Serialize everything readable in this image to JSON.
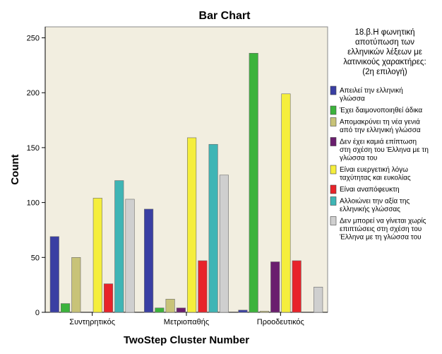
{
  "chart_data": {
    "type": "bar",
    "title": "Bar Chart",
    "xlabel": "TwoStep Cluster Number",
    "ylabel": "Count",
    "ylim": [
      0,
      260
    ],
    "yticks": [
      0,
      50,
      100,
      150,
      200,
      250
    ],
    "grid": false,
    "legend_position": "right",
    "categories": [
      "Συντηρητικός",
      "Μετριοπαθής",
      "Προοδευτικός"
    ],
    "legend_title": [
      "18.β.Η φωνητική",
      "αποτύπωση των",
      "ελληνικών λέξεων με",
      "λατινικούς χαρακτήρες:",
      "(2η επιλογή)"
    ],
    "series": [
      {
        "name": "Απειλεί την ελληνική γλώσσα",
        "legend_lines": [
          "Απειλεί την ελληνική",
          "γλώσσα"
        ],
        "color": "#3a3fa3",
        "values": [
          69,
          94,
          2
        ]
      },
      {
        "name": "Έχει δαιμονοποιηθεί άδικα",
        "legend_lines": [
          "Έχει δαιμονοποιηθεί άδικα"
        ],
        "color": "#3cb33c",
        "values": [
          8,
          4,
          236
        ]
      },
      {
        "name": "Απομακρύνει τη νέα γενιά από την ελληνική γλώσσα",
        "legend_lines": [
          "Απομακρύνει τη νέα γενιά",
          "από την ελληνική γλώσσα"
        ],
        "color": "#c8c378",
        "values": [
          50,
          12,
          1
        ]
      },
      {
        "name": "Δεν έχει καμιά επίπτωση στη σχέση του Έλληνα με τη γλώσσα του",
        "legend_lines": [
          "Δεν έχει καμιά επίπτωση",
          "στη σχέση του Έλληνα με τη",
          "γλώσσα του"
        ],
        "color": "#6a1e6e",
        "values": [
          0,
          4,
          46
        ]
      },
      {
        "name": "Είναι ευεργετική λόγω ταχύτητας και ευκολίας",
        "legend_lines": [
          "Είναι ευεργετική λόγω",
          "ταχύτητας και ευκολίας"
        ],
        "color": "#f5ee3c",
        "values": [
          104,
          159,
          199
        ]
      },
      {
        "name": "Είναι αναπόφευκτη",
        "legend_lines": [
          "Είναι αναπόφευκτη"
        ],
        "color": "#e8232a",
        "values": [
          26,
          47,
          47
        ]
      },
      {
        "name": "Αλλοιώνει την αξία της ελληνικής γλώσσας",
        "legend_lines": [
          "Αλλοιώνει την αξία της",
          "ελληνικής γλώσσας"
        ],
        "color": "#3fb5b5",
        "values": [
          120,
          153,
          0
        ]
      },
      {
        "name": "Δεν μπορεί να γίνεται χωρίς επιπτώσεις στη σχέση του Έλληνα με τη γλώσσα του",
        "legend_lines": [
          "Δεν μπορεί να γίνεται χωρίς",
          "επιπτώσεις στη σχέση του",
          "Έλληνα με τη γλώσσα του"
        ],
        "color": "#cfcfcf",
        "values": [
          103,
          125,
          23
        ]
      }
    ]
  },
  "colors": {
    "plot_background": "#f2eee0",
    "bar_stroke": "#6b6b6b"
  }
}
